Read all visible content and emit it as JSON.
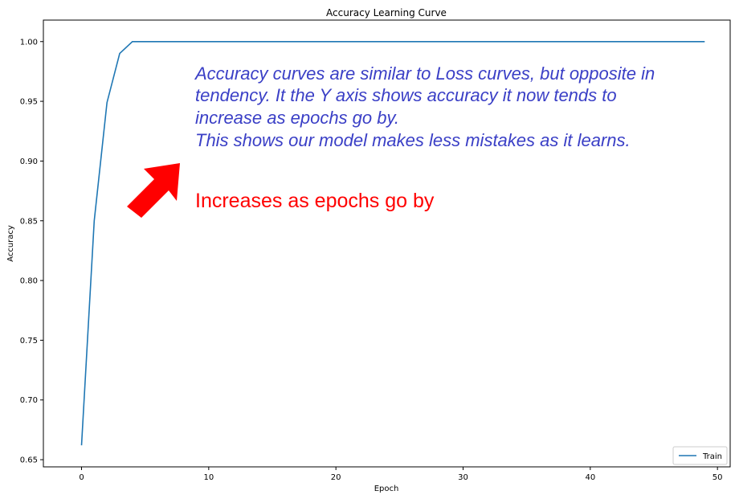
{
  "chart_data": {
    "type": "line",
    "title": "Accuracy Learning Curve",
    "xlabel": "Epoch",
    "ylabel": "Accuracy",
    "xlim": [
      -3,
      51
    ],
    "ylim": [
      0.644,
      1.018
    ],
    "xticks": [
      0,
      10,
      20,
      30,
      40,
      50
    ],
    "xtick_labels": [
      "0",
      "10",
      "20",
      "30",
      "40",
      "50"
    ],
    "yticks": [
      0.65,
      0.7,
      0.75,
      0.8,
      0.85,
      0.9,
      0.95,
      1.0
    ],
    "ytick_labels": [
      "0.65",
      "0.70",
      "0.75",
      "0.80",
      "0.85",
      "0.90",
      "0.95",
      "1.00"
    ],
    "grid": false,
    "legend_position": "bottom-right",
    "series": [
      {
        "name": "Train",
        "color": "#1f77b4",
        "x": [
          0,
          1,
          2,
          3,
          4,
          5,
          6,
          7,
          8,
          9,
          10,
          11,
          12,
          13,
          14,
          15,
          16,
          17,
          18,
          19,
          20,
          21,
          22,
          23,
          24,
          25,
          26,
          27,
          28,
          29,
          30,
          31,
          32,
          33,
          34,
          35,
          36,
          37,
          38,
          39,
          40,
          41,
          42,
          43,
          44,
          45,
          46,
          47,
          48,
          49
        ],
        "values": [
          0.662,
          0.85,
          0.949,
          0.99,
          1.0,
          1.0,
          1.0,
          1.0,
          1.0,
          1.0,
          1.0,
          1.0,
          1.0,
          1.0,
          1.0,
          1.0,
          1.0,
          1.0,
          1.0,
          1.0,
          1.0,
          1.0,
          1.0,
          1.0,
          1.0,
          1.0,
          1.0,
          1.0,
          1.0,
          1.0,
          1.0,
          1.0,
          1.0,
          1.0,
          1.0,
          1.0,
          1.0,
          1.0,
          1.0,
          1.0,
          1.0,
          1.0,
          1.0,
          1.0,
          1.0,
          1.0,
          1.0,
          1.0,
          1.0,
          1.0
        ]
      }
    ],
    "annotations": {
      "blue_lines": [
        "Accuracy curves are similar to Loss curves, but opposite in",
        "tendency. It the Y axis shows accuracy it now tends to",
        "increase as epochs go by.",
        "This shows our model makes less mistakes as it learns."
      ],
      "blue_color": "#3a3fc6",
      "red_text": "Increases as epochs go by",
      "red_color": "#ff0000",
      "arrow_icon": "arrow-up-right-icon"
    }
  }
}
